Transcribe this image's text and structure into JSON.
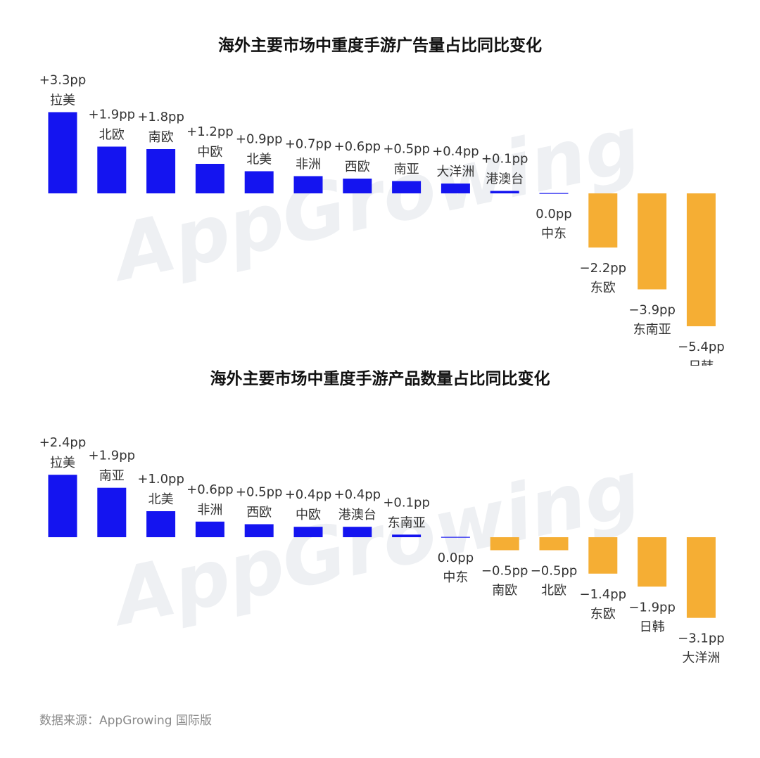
{
  "colors": {
    "positive": "#1414f0",
    "negative": "#f5ae34",
    "title": "#111111",
    "label": "#333333",
    "watermark": "#eef0f3"
  },
  "watermark": "AppGrowing",
  "source": "数据来源：AppGrowing 国际版",
  "chart_data": [
    {
      "type": "bar",
      "title": "海外主要市场中重度手游广告量占比同比变化",
      "categories": [
        "拉美",
        "北欧",
        "南欧",
        "中欧",
        "北美",
        "非洲",
        "西欧",
        "南亚",
        "大洋洲",
        "港澳台",
        "中东",
        "东欧",
        "东南亚",
        "日韩"
      ],
      "values": [
        3.3,
        1.9,
        1.8,
        1.2,
        0.9,
        0.7,
        0.6,
        0.5,
        0.4,
        0.1,
        0.0,
        -2.2,
        -3.9,
        -5.4
      ],
      "value_labels": [
        "+3.3pp",
        "+1.9pp",
        "+1.8pp",
        "+1.2pp",
        "+0.9pp",
        "+0.7pp",
        "+0.6pp",
        "+0.5pp",
        "+0.4pp",
        "+0.1pp",
        "0.0pp",
        "−2.2pp",
        "−3.9pp",
        "−5.4pp"
      ],
      "xlabel": "",
      "ylabel": "",
      "grid": false
    },
    {
      "type": "bar",
      "title": "海外主要市场中重度手游产品数量占比同比变化",
      "categories": [
        "拉美",
        "南亚",
        "北美",
        "非洲",
        "西欧",
        "中欧",
        "港澳台",
        "东南亚",
        "中东",
        "南欧",
        "北欧",
        "东欧",
        "日韩",
        "大洋洲"
      ],
      "values": [
        2.4,
        1.9,
        1.0,
        0.6,
        0.5,
        0.4,
        0.4,
        0.1,
        0.0,
        -0.5,
        -0.5,
        -1.4,
        -1.9,
        -3.1
      ],
      "value_labels": [
        "+2.4pp",
        "+1.9pp",
        "+1.0pp",
        "+0.6pp",
        "+0.5pp",
        "+0.4pp",
        "+0.4pp",
        "+0.1pp",
        "0.0pp",
        "−0.5pp",
        "−0.5pp",
        "−1.4pp",
        "−1.9pp",
        "−3.1pp"
      ],
      "xlabel": "",
      "ylabel": "",
      "grid": false
    }
  ]
}
